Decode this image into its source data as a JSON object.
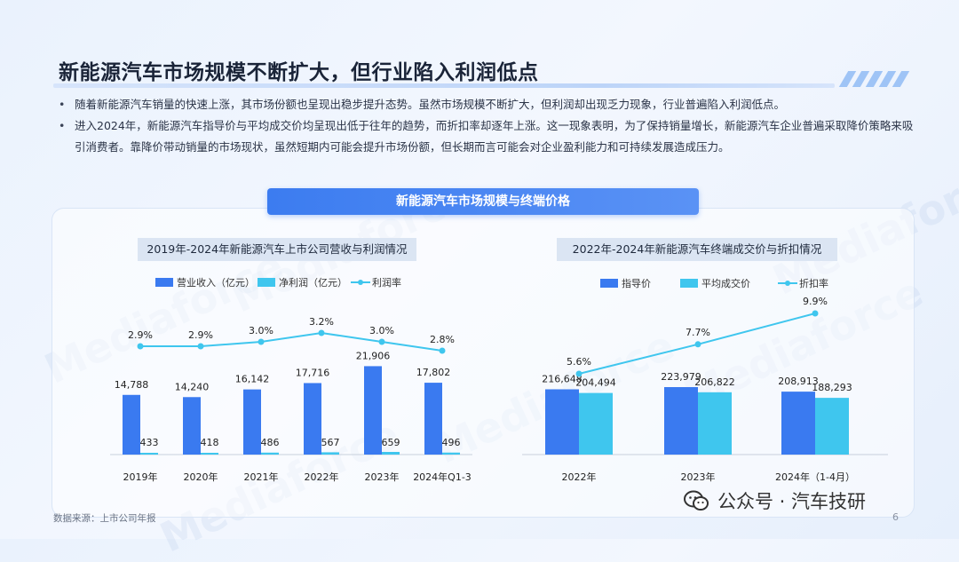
{
  "title": "新能源汽车市场规模不断扩大，但行业陷入利润低点",
  "bullets": [
    "随着新能源汽车销量的快速上涨，其市场份额也呈现出稳步提升态势。虽然市场规模不断扩大，但利润却出现乏力现象，行业普遍陷入利润低点。",
    "进入2024年，新能源汽车指导价与平均成交价均呈现出低于往年的趋势，而折扣率却逐年上涨。这一现象表明，为了保持销量增长，新能源汽车企业普遍采取降价策略来吸引消费者。靠降价带动销量的市场现状，虽然短期内可能会提升市场份额，但长期而言可能会对企业盈利能力和可持续发展造成压力。"
  ],
  "banner": "新能源汽车市场规模与终端价格",
  "source": "数据来源：上市公司年报",
  "page_number": "6",
  "wechat": "公众号 · 汽车技研",
  "colors": {
    "bar_primary": "#3a7af0",
    "bar_secondary": "#3fc6ee",
    "line": "#3fc6ee"
  },
  "chart_data": [
    {
      "type": "bar",
      "title": "2019年-2024年新能源汽车上市公司营收与利润情况",
      "categories": [
        "2019年",
        "2020年",
        "2021年",
        "2022年",
        "2023年",
        "2024年Q1-3"
      ],
      "series": [
        {
          "name": "营业收入（亿元）",
          "values": [
            14788,
            14240,
            16142,
            17716,
            21906,
            17802
          ],
          "labels": [
            "14,788",
            "14,240",
            "16,142",
            "17,716",
            "21,906",
            "17,802"
          ]
        },
        {
          "name": "净利润（亿元）",
          "values": [
            433,
            418,
            486,
            567,
            659,
            496
          ],
          "labels": [
            "433",
            "418",
            "486",
            "567",
            "659",
            "496"
          ]
        },
        {
          "name": "利润率",
          "type": "line",
          "values": [
            2.9,
            2.9,
            3.0,
            3.2,
            3.0,
            2.8
          ],
          "labels": [
            "2.9%",
            "2.9%",
            "3.0%",
            "3.2%",
            "3.0%",
            "2.8%"
          ]
        }
      ],
      "legend_position": "top"
    },
    {
      "type": "bar",
      "title": "2022年-2024年新能源汽车终端成交价与折扣情况",
      "categories": [
        "2022年",
        "2023年",
        "2024年（1-4月）"
      ],
      "series": [
        {
          "name": "指导价",
          "values": [
            216648,
            223979,
            208913
          ],
          "labels": [
            "216,648",
            "223,979",
            "208,913"
          ]
        },
        {
          "name": "平均成交价",
          "values": [
            204494,
            206822,
            188293
          ],
          "labels": [
            "204,494",
            "206,822",
            "188,293"
          ]
        },
        {
          "name": "折扣率",
          "type": "line",
          "values": [
            5.6,
            7.7,
            9.9
          ],
          "labels": [
            "5.6%",
            "7.7%",
            "9.9%"
          ]
        }
      ],
      "legend_position": "top"
    }
  ]
}
